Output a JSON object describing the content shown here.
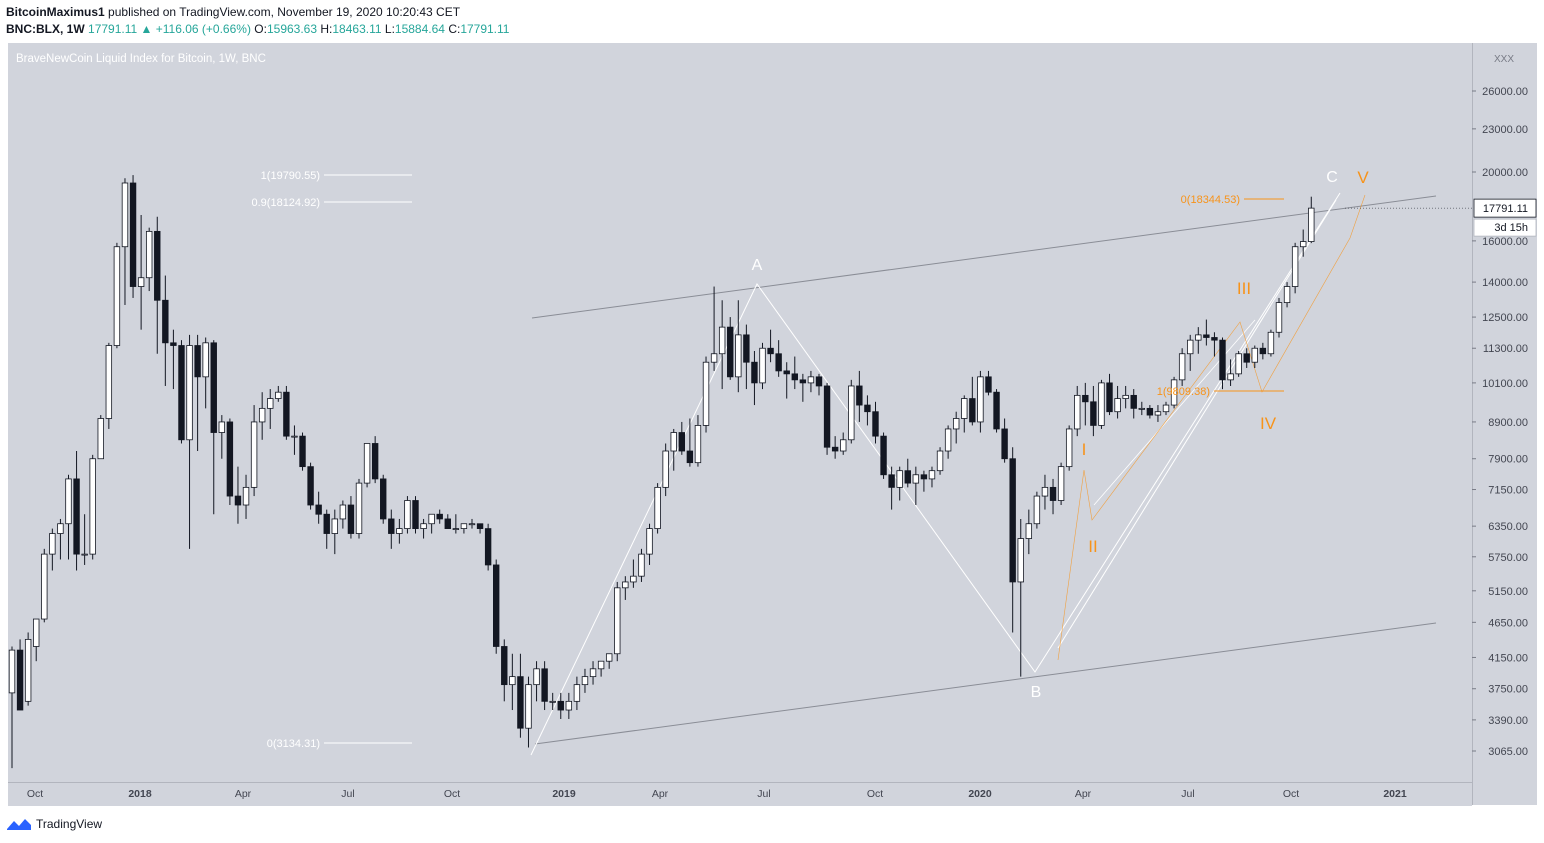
{
  "header": {
    "author": "BitcoinMaximus1",
    "published_text": "published on TradingView.com, November 19, 2020 10:20:43 CET",
    "symbol": "BNC:BLX, 1W",
    "last": "17791.11",
    "change": "+116.06 (+0.66%)",
    "open_label": "O:",
    "open": "15963.63",
    "high_label": "H:",
    "high": "18463.11",
    "low_label": "L:",
    "low": "15884.64",
    "close_label": "C:",
    "close": "17791.11"
  },
  "plot_title": "BraveNewCoin Liquid Index for Bitcoin, 1W, BNC",
  "footer": {
    "brand": "TradingView"
  },
  "colors": {
    "bg": "#d1d4dc",
    "bull_body": "#ffffff",
    "bear_body": "#131722",
    "annotation_white": "#ffffff",
    "annotation_orange": "#f7931a",
    "trendline": "#8a8d96"
  },
  "chart_data": {
    "type": "candlestick",
    "scale": "log",
    "y_ticks": [
      "3065.00",
      "3390.00",
      "3750.00",
      "4150.00",
      "4650.00",
      "5150.00",
      "5750.00",
      "6350.00",
      "7150.00",
      "7900.00",
      "8900.00",
      "10100.00",
      "11300.00",
      "12500.00",
      "14000.00",
      "16000.00",
      "20000.00",
      "23000.00",
      "26000.00"
    ],
    "y_top_label": "XXX",
    "x_ticks": [
      "Oct",
      "2018",
      "Apr",
      "Jul",
      "Oct",
      "2019",
      "Apr",
      "Jul",
      "Oct",
      "2020",
      "Apr",
      "Jul",
      "Oct",
      "2021"
    ],
    "last_price_label": "17791.11",
    "countdown_label": "3d 15h",
    "fib_white": [
      "1(19790.55)",
      "0.9(18124.92)",
      "0(3134.31)"
    ],
    "fib_orange": [
      "0(18344.53)",
      "1(9809.38)"
    ],
    "wave_labels_white": [
      "A",
      "B",
      "C"
    ],
    "wave_labels_orange": [
      "I",
      "II",
      "III",
      "IV",
      "V"
    ],
    "candles": [
      [
        3700,
        4300,
        2900,
        4250
      ],
      [
        4250,
        4400,
        3500,
        3500
      ],
      [
        3600,
        4500,
        3550,
        4400
      ],
      [
        4300,
        4700,
        4100,
        4700
      ],
      [
        4700,
        5900,
        4650,
        5800
      ],
      [
        5800,
        6300,
        5500,
        6200
      ],
      [
        6200,
        6500,
        5700,
        6400
      ],
      [
        6400,
        7500,
        5700,
        7400
      ],
      [
        7400,
        8100,
        5500,
        5800
      ],
      [
        5800,
        6600,
        5600,
        5800
      ],
      [
        5800,
        8000,
        5700,
        7900
      ],
      [
        7900,
        9100,
        7900,
        9000
      ],
      [
        9000,
        11500,
        8700,
        11400
      ],
      [
        11400,
        15900,
        11300,
        15700
      ],
      [
        15700,
        19600,
        13000,
        19300
      ],
      [
        19300,
        19800,
        13300,
        13800
      ],
      [
        13800,
        17400,
        12000,
        14200
      ],
      [
        14200,
        16700,
        13600,
        16500
      ],
      [
        16500,
        17300,
        11100,
        13200
      ],
      [
        13200,
        14300,
        10000,
        11500
      ],
      [
        11500,
        12000,
        9900,
        11400
      ],
      [
        11400,
        11600,
        8300,
        8400
      ],
      [
        8400,
        11800,
        5900,
        11400
      ],
      [
        11400,
        11800,
        8100,
        10300
      ],
      [
        10300,
        11700,
        9300,
        11500
      ],
      [
        11500,
        11600,
        6600,
        8600
      ],
      [
        8600,
        9100,
        7900,
        8900
      ],
      [
        8900,
        9000,
        6800,
        7000
      ],
      [
        7000,
        7700,
        6400,
        6800
      ],
      [
        6800,
        7500,
        6500,
        7200
      ],
      [
        7200,
        9400,
        7000,
        8900
      ],
      [
        8900,
        9800,
        8400,
        9300
      ],
      [
        9300,
        9900,
        8700,
        9600
      ],
      [
        9600,
        10000,
        9500,
        9800
      ],
      [
        9800,
        10000,
        8400,
        8500
      ],
      [
        8500,
        8800,
        8000,
        8500
      ],
      [
        8500,
        8600,
        7600,
        7700
      ],
      [
        7700,
        7800,
        6700,
        6800
      ],
      [
        6800,
        7100,
        6400,
        6600
      ],
      [
        6600,
        6700,
        5900,
        6200
      ],
      [
        6200,
        6700,
        5800,
        6500
      ],
      [
        6500,
        6900,
        6300,
        6800
      ],
      [
        6800,
        7000,
        6100,
        6200
      ],
      [
        6200,
        7400,
        6100,
        7300
      ],
      [
        7300,
        8300,
        7200,
        8300
      ],
      [
        8300,
        8500,
        7300,
        7400
      ],
      [
        7400,
        7500,
        6400,
        6500
      ],
      [
        6500,
        6700,
        5900,
        6200
      ],
      [
        6200,
        6500,
        6000,
        6300
      ],
      [
        6300,
        7000,
        6200,
        6900
      ],
      [
        6900,
        7000,
        6200,
        6300
      ],
      [
        6300,
        6500,
        6100,
        6400
      ],
      [
        6400,
        6600,
        6200,
        6600
      ],
      [
        6600,
        6700,
        6400,
        6500
      ],
      [
        6500,
        6600,
        6300,
        6300
      ],
      [
        6300,
        6600,
        6200,
        6300
      ],
      [
        6300,
        6400,
        6200,
        6400
      ],
      [
        6400,
        6500,
        6300,
        6400
      ],
      [
        6400,
        6400,
        6200,
        6300
      ],
      [
        6300,
        6400,
        5500,
        5600
      ],
      [
        5600,
        5700,
        4200,
        4300
      ],
      [
        4300,
        4400,
        3600,
        3800
      ],
      [
        3800,
        4200,
        3500,
        3900
      ],
      [
        3900,
        4200,
        3200,
        3300
      ],
      [
        3300,
        3900,
        3100,
        3800
      ],
      [
        3800,
        4100,
        3600,
        4000
      ],
      [
        4000,
        4100,
        3500,
        3600
      ],
      [
        3600,
        3700,
        3500,
        3600
      ],
      [
        3600,
        3700,
        3400,
        3500
      ],
      [
        3500,
        3700,
        3400,
        3600
      ],
      [
        3600,
        3900,
        3500,
        3800
      ],
      [
        3800,
        4000,
        3700,
        3900
      ],
      [
        3900,
        4100,
        3800,
        4000
      ],
      [
        4000,
        4100,
        3900,
        4100
      ],
      [
        4100,
        4200,
        4000,
        4200
      ],
      [
        4200,
        5300,
        4100,
        5200
      ],
      [
        5200,
        5400,
        5000,
        5300
      ],
      [
        5300,
        5700,
        5200,
        5400
      ],
      [
        5400,
        5900,
        5300,
        5800
      ],
      [
        5800,
        6400,
        5600,
        6300
      ],
      [
        6300,
        7300,
        6200,
        7200
      ],
      [
        7200,
        8300,
        7000,
        8100
      ],
      [
        8100,
        8700,
        7600,
        8600
      ],
      [
        8600,
        8900,
        8000,
        8100
      ],
      [
        8100,
        9000,
        7700,
        7800
      ],
      [
        7800,
        9100,
        7700,
        8800
      ],
      [
        8800,
        11000,
        8600,
        10800
      ],
      [
        10800,
        13800,
        10500,
        11100
      ],
      [
        11100,
        13200,
        9900,
        12100
      ],
      [
        12100,
        12500,
        10200,
        10300
      ],
      [
        10300,
        13200,
        9800,
        11800
      ],
      [
        11800,
        12200,
        9900,
        10800
      ],
      [
        10800,
        11200,
        9400,
        10100
      ],
      [
        10100,
        11500,
        9900,
        11300
      ],
      [
        11300,
        12000,
        10800,
        11100
      ],
      [
        11100,
        11600,
        10300,
        10500
      ],
      [
        10500,
        10800,
        9600,
        10400
      ],
      [
        10400,
        11000,
        9900,
        10200
      ],
      [
        10200,
        10400,
        9500,
        10100
      ],
      [
        10100,
        10500,
        9800,
        10300
      ],
      [
        10300,
        10400,
        9700,
        10000
      ],
      [
        10000,
        10100,
        8000,
        8200
      ],
      [
        8200,
        8500,
        7900,
        8100
      ],
      [
        8100,
        8600,
        8000,
        8400
      ],
      [
        8400,
        10200,
        8300,
        10000
      ],
      [
        10000,
        10500,
        8900,
        9400
      ],
      [
        9400,
        9700,
        8800,
        9200
      ],
      [
        9200,
        9500,
        8300,
        8500
      ],
      [
        8500,
        8600,
        7400,
        7500
      ],
      [
        7500,
        7700,
        6700,
        7200
      ],
      [
        7200,
        7700,
        6900,
        7600
      ],
      [
        7600,
        7900,
        7200,
        7300
      ],
      [
        7300,
        7700,
        6800,
        7500
      ],
      [
        7500,
        7600,
        7100,
        7400
      ],
      [
        7400,
        7700,
        7200,
        7600
      ],
      [
        7600,
        8200,
        7500,
        8100
      ],
      [
        8100,
        8800,
        7900,
        8700
      ],
      [
        8700,
        9200,
        8300,
        9000
      ],
      [
        9000,
        9700,
        8600,
        9600
      ],
      [
        9600,
        10300,
        8800,
        8900
      ],
      [
        8900,
        10500,
        8600,
        10300
      ],
      [
        10300,
        10500,
        9700,
        9800
      ],
      [
        9800,
        9900,
        8600,
        8700
      ],
      [
        8700,
        9000,
        7800,
        7900
      ],
      [
        7900,
        8200,
        4500,
        5300
      ],
      [
        5300,
        6500,
        3900,
        6100
      ],
      [
        6100,
        6700,
        5800,
        6400
      ],
      [
        6400,
        7100,
        6300,
        7000
      ],
      [
        7000,
        7500,
        6700,
        7200
      ],
      [
        7200,
        7400,
        6600,
        6900
      ],
      [
        6900,
        7800,
        6800,
        7700
      ],
      [
        7700,
        8800,
        7600,
        8700
      ],
      [
        8700,
        10000,
        8500,
        9700
      ],
      [
        9700,
        10100,
        8800,
        9500
      ],
      [
        9500,
        10000,
        8500,
        8800
      ],
      [
        8800,
        10200,
        8700,
        10100
      ],
      [
        10100,
        10400,
        9100,
        9200
      ],
      [
        9200,
        10000,
        9000,
        9600
      ],
      [
        9600,
        10000,
        9300,
        9700
      ],
      [
        9700,
        9900,
        9000,
        9300
      ],
      [
        9300,
        9500,
        9100,
        9300
      ],
      [
        9300,
        9400,
        9000,
        9100
      ],
      [
        9100,
        9400,
        8900,
        9200
      ],
      [
        9200,
        9500,
        9100,
        9400
      ],
      [
        9400,
        10300,
        9300,
        10200
      ],
      [
        10200,
        11300,
        10000,
        11100
      ],
      [
        11100,
        11800,
        10500,
        11600
      ],
      [
        11600,
        12100,
        11100,
        11800
      ],
      [
        11800,
        12400,
        11400,
        11700
      ],
      [
        11700,
        11900,
        11000,
        11600
      ],
      [
        11600,
        11700,
        9900,
        10200
      ],
      [
        10200,
        10900,
        10000,
        10400
      ],
      [
        10400,
        11200,
        10300,
        11100
      ],
      [
        11100,
        11300,
        10600,
        10800
      ],
      [
        10800,
        11400,
        10600,
        11300
      ],
      [
        11300,
        11500,
        10900,
        11100
      ],
      [
        11100,
        12000,
        11000,
        11900
      ],
      [
        11900,
        13300,
        11700,
        13100
      ],
      [
        13100,
        14000,
        12900,
        13800
      ],
      [
        13800,
        15900,
        13500,
        15700
      ],
      [
        15700,
        16600,
        15200,
        15964
      ],
      [
        15964,
        18463,
        15885,
        17791
      ]
    ]
  }
}
